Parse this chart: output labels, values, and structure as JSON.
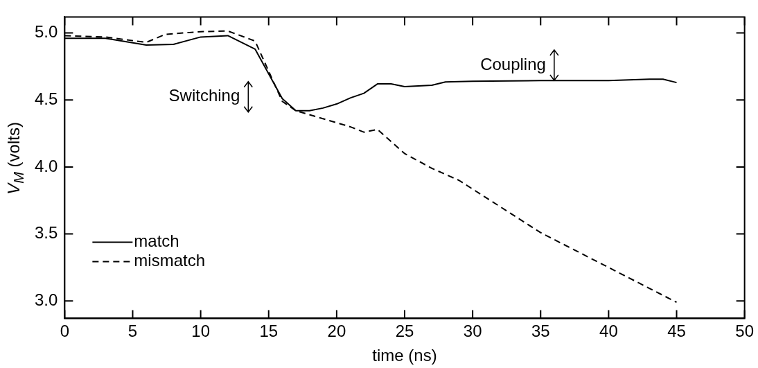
{
  "chart_data": {
    "type": "line",
    "xlabel": "time (ns)",
    "ylabel": "V$_{M}$ (volts)",
    "xlim": [
      0,
      50
    ],
    "xticks": [
      0,
      5,
      10,
      15,
      20,
      25,
      30,
      35,
      40,
      45,
      50
    ],
    "ylim": [
      2.87,
      5.12
    ],
    "yticks": [
      {
        "value": 3.0,
        "label": "3.0"
      },
      {
        "value": 3.5,
        "label": "3.5"
      },
      {
        "value": 4.0,
        "label": "4.0"
      },
      {
        "value": 4.5,
        "label": "4.5"
      },
      {
        "value": 5.0,
        "label": "5.0"
      }
    ],
    "grid": false,
    "legend": "bottom left",
    "marker": "none",
    "series": [
      {
        "name": "match",
        "color": "#000000",
        "line_style": "solid",
        "x": [
          0,
          3,
          6,
          8,
          10,
          12,
          14,
          16,
          17,
          18,
          19,
          20,
          21,
          22,
          23,
          24,
          25,
          27,
          28,
          30,
          35,
          40,
          43,
          44,
          45
        ],
        "values": [
          4.96,
          4.96,
          4.91,
          4.915,
          4.97,
          4.98,
          4.88,
          4.51,
          4.42,
          4.42,
          4.44,
          4.47,
          4.515,
          4.55,
          4.62,
          4.62,
          4.6,
          4.61,
          4.635,
          4.64,
          4.645,
          4.645,
          4.655,
          4.655,
          4.63
        ]
      },
      {
        "name": "mismatch",
        "color": "#000000",
        "line_style": "dashed",
        "x": [
          0,
          3,
          6,
          7.4,
          10,
          12,
          14,
          16,
          17,
          18,
          20,
          21,
          22,
          23,
          25,
          27,
          29,
          35,
          40,
          45
        ],
        "values": [
          4.98,
          4.97,
          4.93,
          4.99,
          5.01,
          5.015,
          4.94,
          4.49,
          4.42,
          4.39,
          4.33,
          4.3,
          4.26,
          4.28,
          4.1,
          3.99,
          3.9,
          3.51,
          3.25,
          2.99
        ]
      }
    ],
    "annotations": [
      "Switching",
      "Coupling"
    ]
  }
}
